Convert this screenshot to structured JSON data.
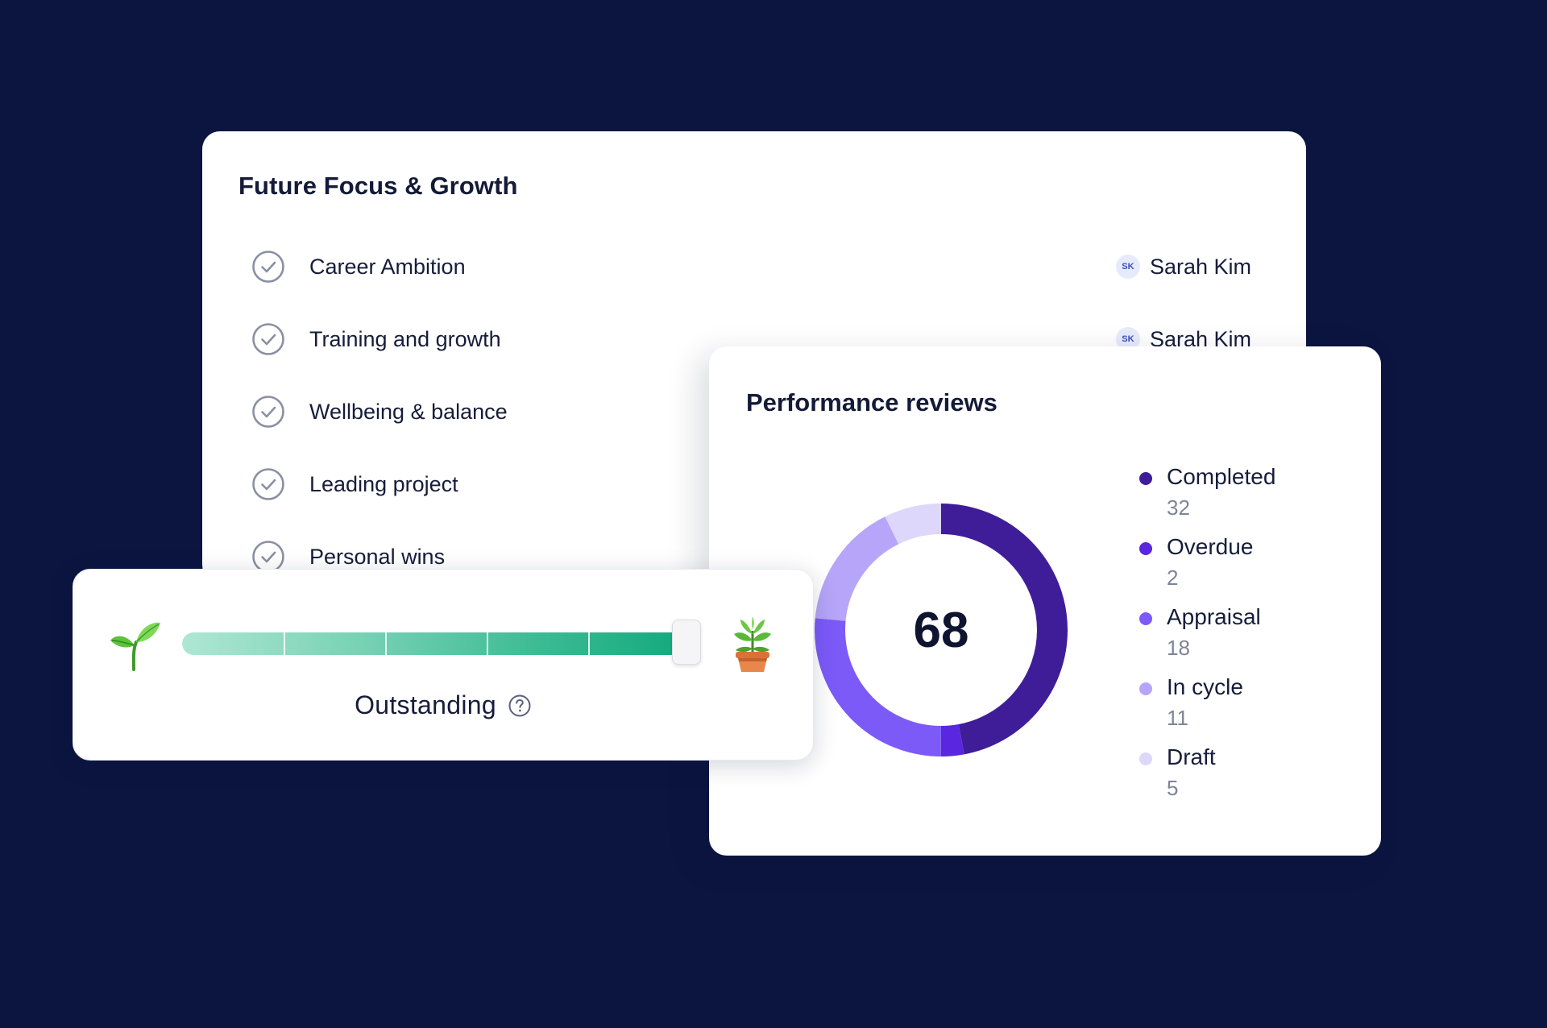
{
  "focus_card": {
    "title": "Future Focus & Growth",
    "items": [
      {
        "label": "Career Ambition",
        "owner": {
          "initials": "SK",
          "name": "Sarah Kim"
        }
      },
      {
        "label": "Training and growth",
        "owner": {
          "initials": "SK",
          "name": "Sarah Kim"
        }
      },
      {
        "label": "Wellbeing & balance"
      },
      {
        "label": "Leading project"
      },
      {
        "label": "Personal wins"
      }
    ],
    "icons": {
      "item": "check-circle-icon",
      "avatar": "avatar"
    }
  },
  "performance": {
    "title": "Performance reviews",
    "total": "68",
    "legend": [
      {
        "label": "Completed",
        "value": "32",
        "color": "#3f1d99"
      },
      {
        "label": "Overdue",
        "value": "2",
        "color": "#5a26e0"
      },
      {
        "label": "Appraisal",
        "value": "18",
        "color": "#7c5af8"
      },
      {
        "label": "In cycle",
        "value": "11",
        "color": "#b6a5f8"
      },
      {
        "label": "Draft",
        "value": "5",
        "color": "#dcd7fb"
      }
    ]
  },
  "chart_data": {
    "type": "pie",
    "categories": [
      "Completed",
      "Overdue",
      "Appraisal",
      "In cycle",
      "Draft"
    ],
    "values": [
      32,
      2,
      18,
      11,
      5
    ],
    "total": 68,
    "colors": [
      "#3f1d99",
      "#5a26e0",
      "#7c5af8",
      "#b6a5f8",
      "#dcd7fb"
    ],
    "title": "Performance reviews",
    "legend": "right"
  },
  "rating": {
    "label": "Outstanding",
    "level": 1.0,
    "segments": 5,
    "start_icon": "seedling-icon",
    "end_icon": "potted-plant-icon",
    "help_icon": "help-circle-icon",
    "colors": {
      "start": "#aee7d4",
      "end": "#12a87c"
    }
  }
}
